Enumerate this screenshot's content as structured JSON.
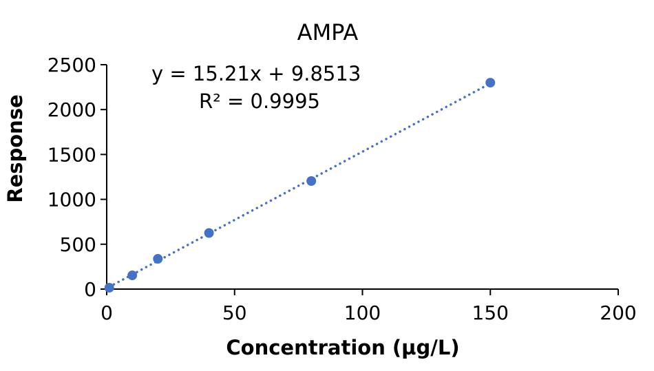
{
  "chart_data": {
    "type": "scatter",
    "title": "AMPA",
    "xlabel": "Concentration (µg/L)",
    "ylabel": "Response",
    "xlim": [
      0,
      200
    ],
    "ylim": [
      0,
      2500
    ],
    "xticks": [
      "0",
      "50",
      "100",
      "150",
      "200"
    ],
    "yticks": [
      "0",
      "500",
      "1000",
      "1500",
      "2000",
      "2500"
    ],
    "grid": false,
    "legend": "none",
    "series": [
      {
        "x": [
          1,
          10,
          20,
          40,
          80,
          150
        ],
        "y": [
          15,
          153,
          337,
          625,
          1204,
          2300
        ],
        "color": "#4472c4"
      }
    ],
    "trendline": {
      "type": "linear",
      "slope": 15.21,
      "intercept": 9.8513,
      "style": "dotted",
      "color": "#4472c4",
      "equation_label": "y = 15.21x + 9.8513",
      "r2_label": "R² = 0.9995"
    }
  }
}
